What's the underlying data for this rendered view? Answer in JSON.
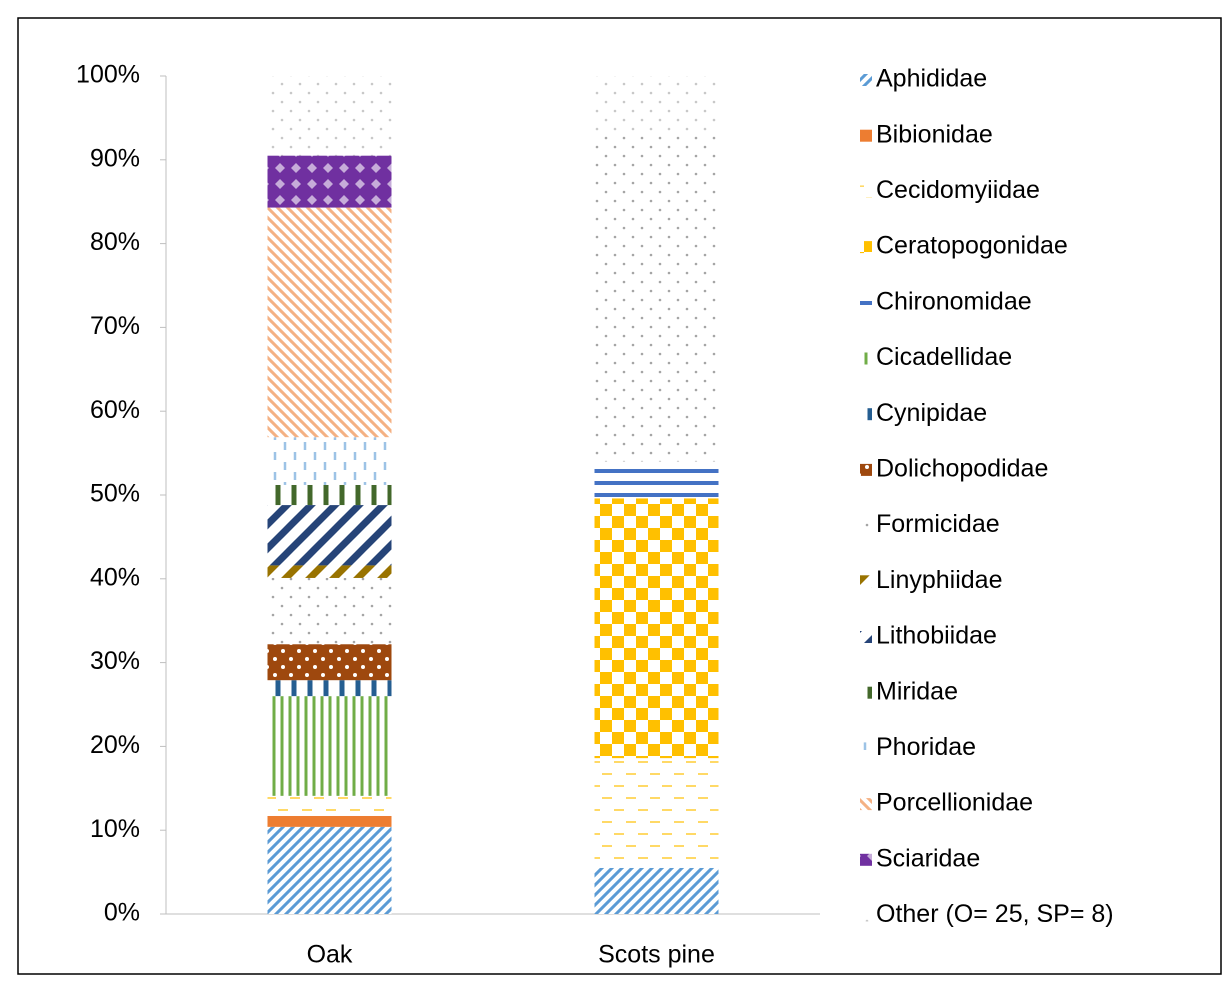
{
  "chart_data": {
    "type": "bar",
    "stacked": true,
    "categories": [
      "Oak",
      "Scots pine"
    ],
    "series": [
      {
        "name": "Aphididae",
        "color": "#5b9bd5",
        "pattern": "diagonal",
        "values": [
          10.4,
          5.5
        ]
      },
      {
        "name": "Bibionidae",
        "color": "#ed7d31",
        "pattern": "solid",
        "values": [
          1.3,
          0
        ]
      },
      {
        "name": "Cecidomyiidae",
        "color": "#ffd966",
        "pattern": "dashes",
        "values": [
          2.4,
          13.1
        ]
      },
      {
        "name": "Ceratopogonidae",
        "color": "#ffc000",
        "pattern": "checker",
        "values": [
          0,
          31.0
        ]
      },
      {
        "name": "Chironomidae",
        "color": "#4472c4",
        "pattern": "horizontal",
        "values": [
          0,
          4.4
        ]
      },
      {
        "name": "Cicadellidae",
        "color": "#70ad47",
        "pattern": "vertical",
        "values": [
          11.9,
          0
        ]
      },
      {
        "name": "Cynipidae",
        "color": "#255e91",
        "pattern": "vertical-wide",
        "values": [
          1.9,
          0
        ]
      },
      {
        "name": "Dolichopodidae",
        "color": "#9e480e",
        "pattern": "dots",
        "values": [
          4.3,
          0
        ]
      },
      {
        "name": "Formicidae",
        "color": "#a5a5a5",
        "pattern": "sparse-dots",
        "values": [
          7.9,
          39.5
        ]
      },
      {
        "name": "Linyphiidae",
        "color": "#997300",
        "pattern": "wide-diagonal",
        "values": [
          1.5,
          0
        ]
      },
      {
        "name": "Lithobiidae",
        "color": "#264478",
        "pattern": "wide-diagonal",
        "values": [
          7.2,
          0
        ]
      },
      {
        "name": "Miridae",
        "color": "#43682b",
        "pattern": "vertical-wide",
        "values": [
          2.4,
          0
        ]
      },
      {
        "name": "Phoridae",
        "color": "#9dc3e6",
        "pattern": "vertical-dashes",
        "values": [
          5.7,
          0
        ]
      },
      {
        "name": "Porcellionidae",
        "color": "#f4b183",
        "pattern": "reverse-diagonal",
        "values": [
          27.4,
          0
        ]
      },
      {
        "name": "Sciaridae",
        "color": "#7030a0",
        "pattern": "diamonds",
        "values": [
          6.2,
          0
        ]
      },
      {
        "name": "Other (O= 25, SP= 8)",
        "color": "#c8c8c8",
        "pattern": "sparse-dots",
        "values": [
          9.5,
          6.5
        ]
      }
    ],
    "ylim": [
      0,
      100
    ],
    "yticks": [
      {
        "value": 0,
        "label": "0%"
      },
      {
        "value": 10,
        "label": "10%"
      },
      {
        "value": 20,
        "label": "20%"
      },
      {
        "value": 30,
        "label": "30%"
      },
      {
        "value": 40,
        "label": "40%"
      },
      {
        "value": 50,
        "label": "50%"
      },
      {
        "value": 60,
        "label": "60%"
      },
      {
        "value": 70,
        "label": "70%"
      },
      {
        "value": 80,
        "label": "80%"
      },
      {
        "value": 90,
        "label": "90%"
      },
      {
        "value": 100,
        "label": "100%"
      }
    ],
    "legend": "right"
  }
}
